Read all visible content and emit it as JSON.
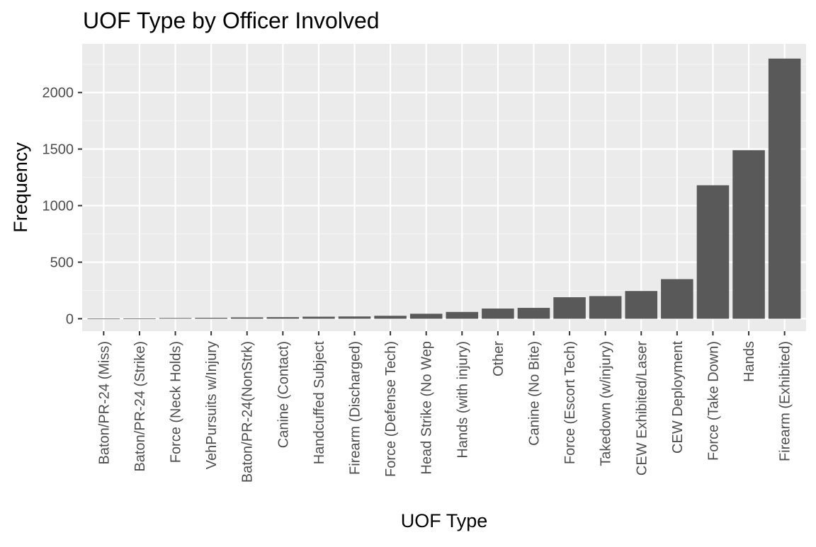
{
  "chart_data": {
    "type": "bar",
    "title": "UOF Type by Officer Involved",
    "xlabel": "UOF Type",
    "ylabel": "Frequency",
    "categories": [
      "Baton/PR-24 (Miss)",
      "Baton/PR-24 (Strike)",
      "Force (Neck Holds)",
      "VehPursuits w/Injury",
      "Baton/PR-24(NonStrk)",
      "Canine (Contact)",
      "Handcuffed Subject",
      "Firearm (Discharged)",
      "Force (Defense Tech)",
      "Head Strike (No Wep",
      "Hands (with injury)",
      "Other",
      "Canine (No Bite)",
      "Force (Escort Tech)",
      "Takedown (w/injury)",
      "CEW Exhibited/Laser",
      "CEW Deployment",
      "Force (Take Down)",
      "Hands",
      "Firearm (Exhibited)"
    ],
    "values": [
      1,
      2,
      6,
      8,
      12,
      14,
      18,
      20,
      26,
      44,
      60,
      90,
      96,
      190,
      200,
      245,
      350,
      1180,
      1490,
      2300
    ],
    "ylim": [
      -110,
      2430
    ],
    "yticks": [
      0,
      500,
      1000,
      1500,
      2000
    ],
    "ytick_labels": [
      "0",
      "500",
      "1000",
      "1500",
      "2000"
    ],
    "grid": true,
    "legend": "none",
    "colors": {
      "bar": "#595959",
      "panel": "#ebebeb",
      "grid_major": "#ffffff",
      "grid_minor": "#f5f5f5",
      "tick_text": "#4d4d4d",
      "tick_mark": "#333333",
      "title_text": "#000000"
    }
  }
}
